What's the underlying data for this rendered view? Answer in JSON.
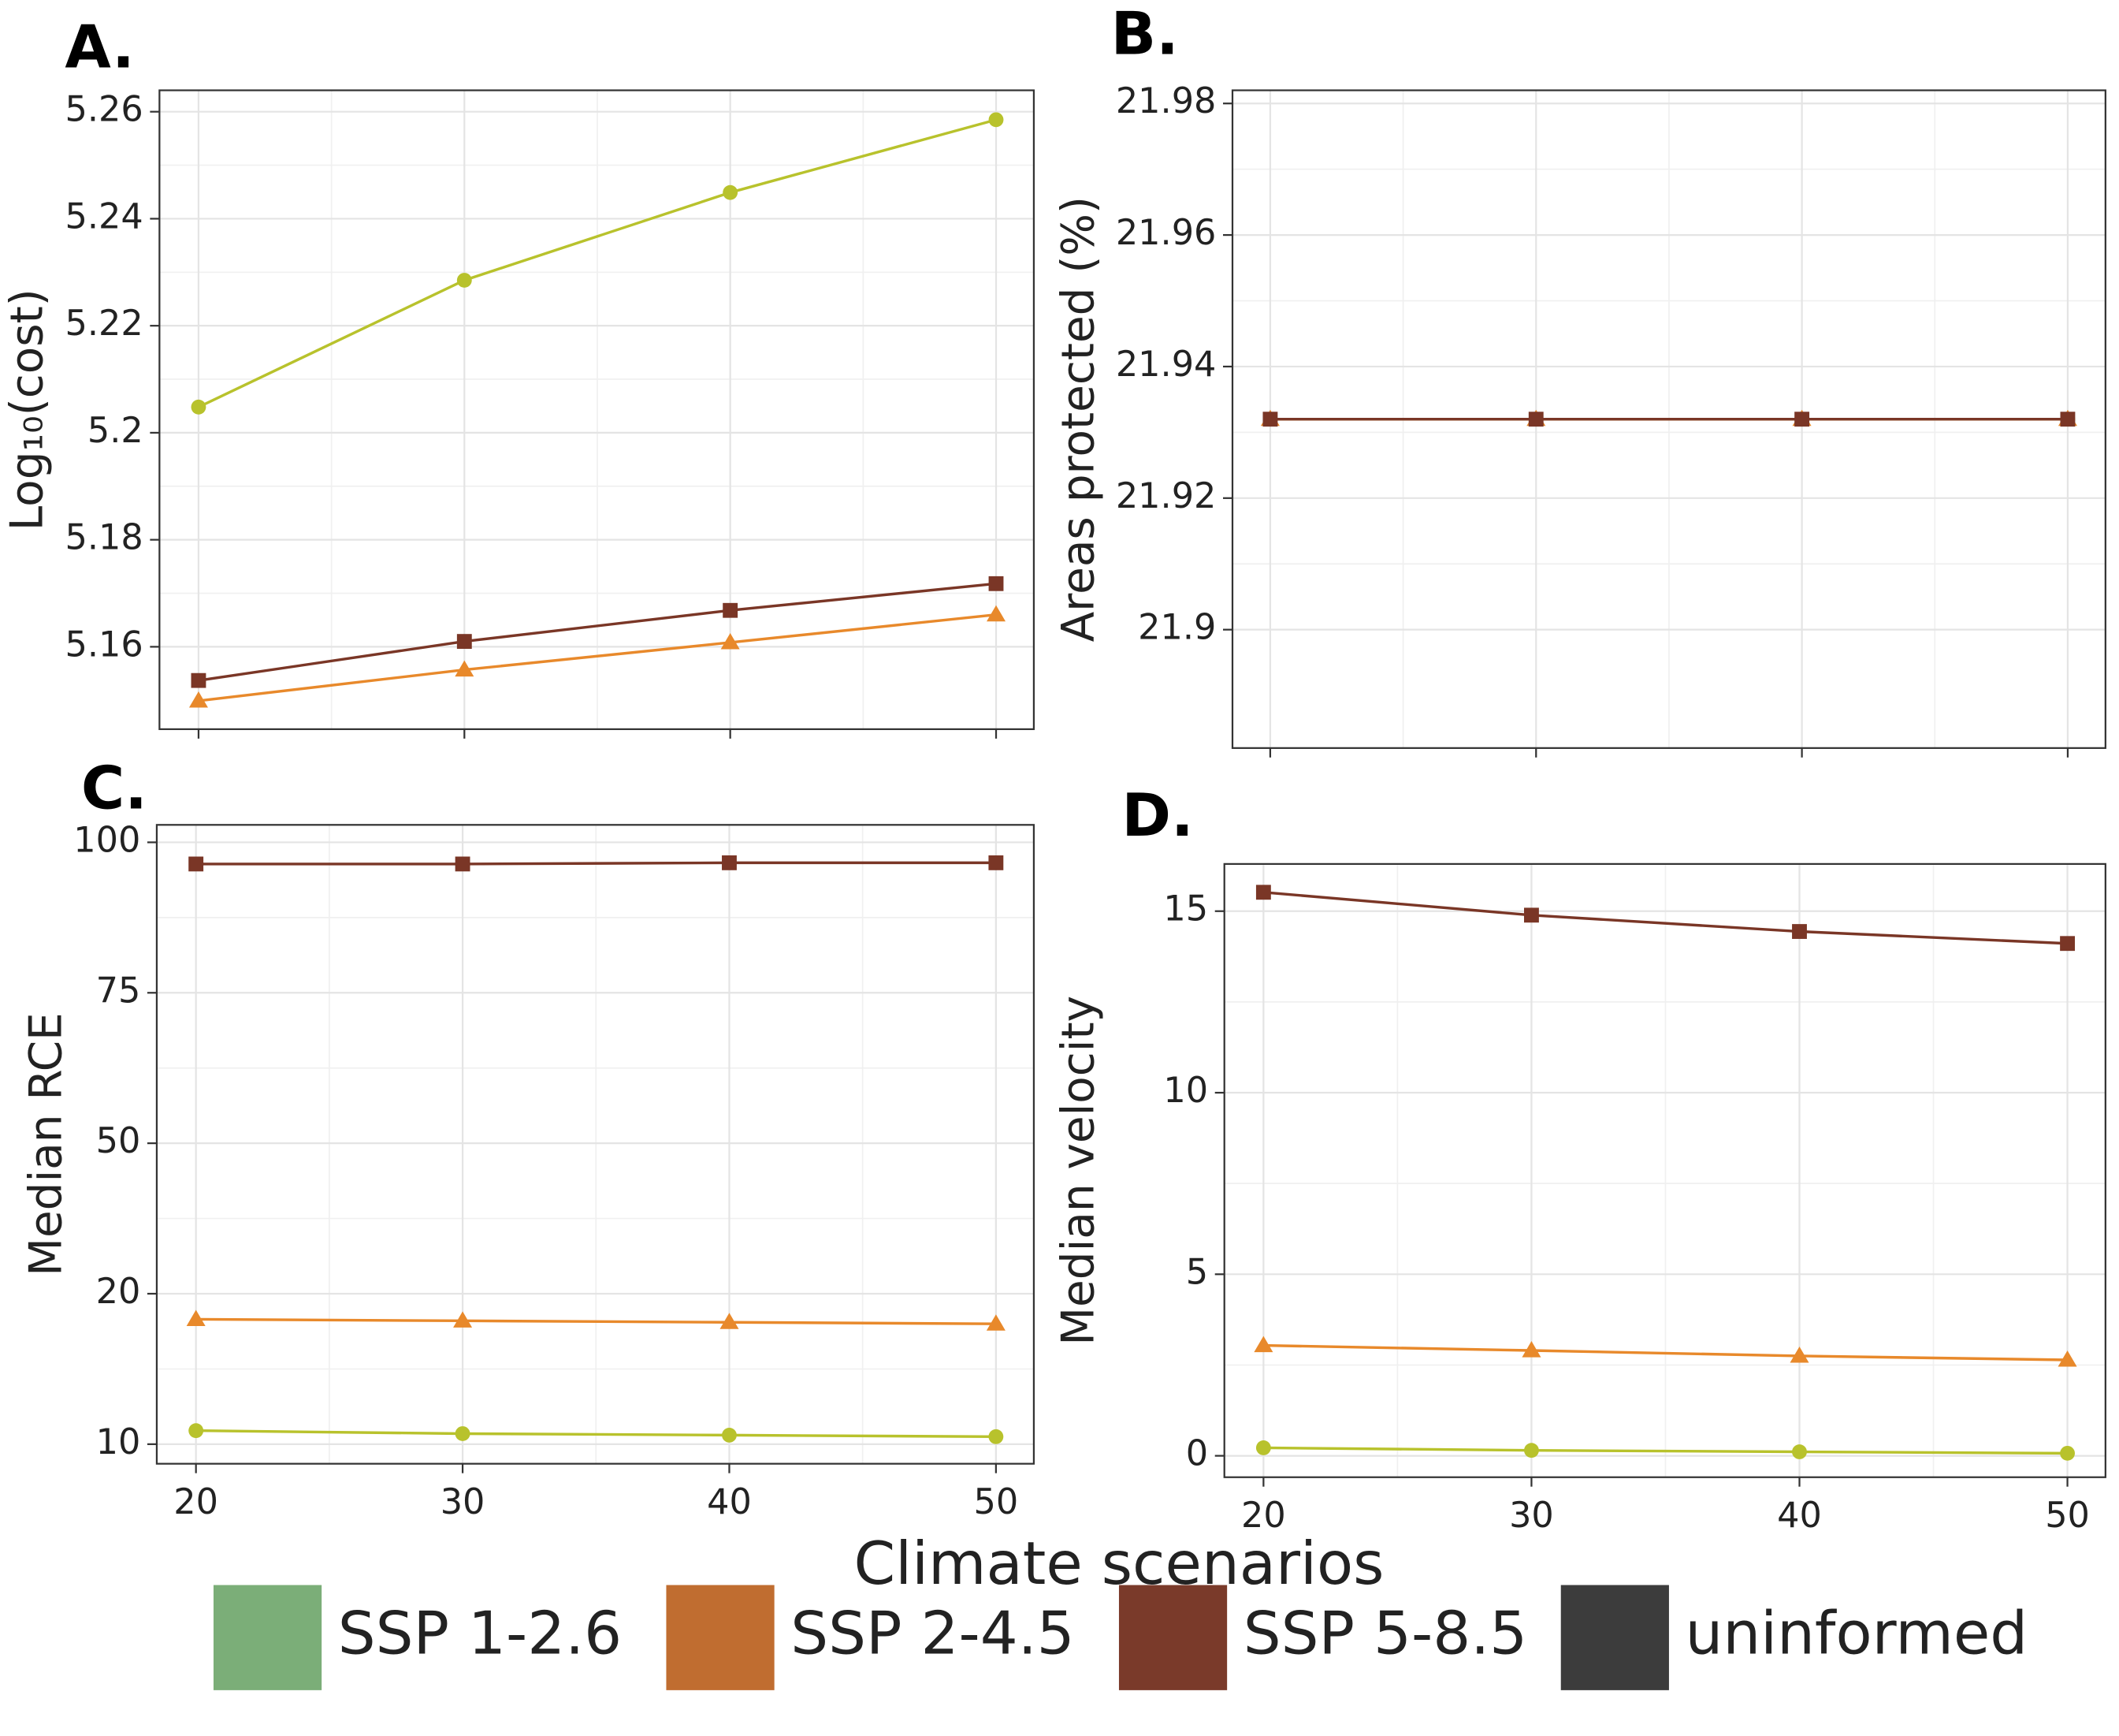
{
  "chart_data": [
    {
      "type": "line",
      "label": "A.",
      "ylabel": "Log₁₀(cost)",
      "x": [
        20,
        30,
        40,
        50
      ],
      "xlim": [
        18.53,
        51.42
      ],
      "xticks": [
        20,
        30,
        40,
        50
      ],
      "xtick_labels": false,
      "ylim": [
        5.1446,
        5.264
      ],
      "yticks": [
        5.16,
        5.18,
        5.2,
        5.22,
        5.24,
        5.26
      ],
      "grid": true,
      "series": [
        {
          "name": "SSP 1-2.6",
          "color": "#b8c22c",
          "marker": "circle",
          "values": [
            5.2048,
            5.2285,
            5.2449,
            5.2585
          ]
        },
        {
          "name": "SSP 2-4.5",
          "color": "#e8892b",
          "marker": "triangle",
          "values": [
            5.1499,
            5.1557,
            5.1608,
            5.166
          ]
        },
        {
          "name": "SSP 5-8.5",
          "color": "#7a3626",
          "marker": "square",
          "values": [
            5.1537,
            5.161,
            5.1668,
            5.1718
          ]
        }
      ]
    },
    {
      "type": "line",
      "label": "B.",
      "ylabel": "Areas protected (%)",
      "x": [
        20,
        30,
        40,
        50
      ],
      "xlim": [
        18.58,
        51.42
      ],
      "xticks": [
        20,
        30,
        40,
        50
      ],
      "xtick_labels": false,
      "ylim": [
        21.882,
        21.982
      ],
      "yticks": [
        21.9,
        21.92,
        21.94,
        21.96,
        21.98
      ],
      "grid": true,
      "series": [
        {
          "name": "SSP 1-2.6",
          "color": "#b8c22c",
          "marker": "circle",
          "values": [
            21.932,
            21.932,
            21.932,
            21.932
          ]
        },
        {
          "name": "SSP 2-4.5",
          "color": "#e8892b",
          "marker": "triangle",
          "values": [
            21.932,
            21.932,
            21.932,
            21.932
          ]
        },
        {
          "name": "SSP 5-8.5",
          "color": "#7a3626",
          "marker": "square",
          "values": [
            21.932,
            21.932,
            21.932,
            21.932
          ]
        }
      ]
    },
    {
      "type": "line",
      "label": "C.",
      "ylabel": "Median RCE",
      "x": [
        20,
        30,
        40,
        50
      ],
      "xlim": [
        18.53,
        51.42
      ],
      "xticks": [
        20,
        30,
        40,
        50
      ],
      "xtick_labels": true,
      "yscale": "piecewise",
      "ylim": [
        8.7,
        102.9
      ],
      "yticks": [
        10,
        20,
        50,
        75,
        100
      ],
      "grid": true,
      "series": [
        {
          "name": "SSP 1-2.6",
          "color": "#b8c22c",
          "marker": "circle",
          "values": [
            10.9,
            10.7,
            10.6,
            10.5
          ]
        },
        {
          "name": "SSP 2-4.5",
          "color": "#e8892b",
          "marker": "triangle",
          "values": [
            18.3,
            18.2,
            18.1,
            18.0
          ]
        },
        {
          "name": "SSP 5-8.5",
          "color": "#7a3626",
          "marker": "square",
          "values": [
            96.4,
            96.4,
            96.6,
            96.6
          ]
        }
      ]
    },
    {
      "type": "line",
      "label": "D.",
      "ylabel": "Median velocity",
      "x": [
        20,
        30,
        40,
        50
      ],
      "xlim": [
        18.54,
        51.42
      ],
      "xticks": [
        20,
        30,
        40,
        50
      ],
      "xtick_labels": true,
      "ylim": [
        -0.59,
        16.3
      ],
      "yticks": [
        0,
        5,
        10,
        15
      ],
      "grid": true,
      "series": [
        {
          "name": "SSP 1-2.6",
          "color": "#b8c22c",
          "marker": "circle",
          "values": [
            0.22,
            0.15,
            0.11,
            0.07
          ]
        },
        {
          "name": "SSP 2-4.5",
          "color": "#e8892b",
          "marker": "triangle",
          "values": [
            3.04,
            2.9,
            2.75,
            2.64
          ]
        },
        {
          "name": "SSP 5-8.5",
          "color": "#7a3626",
          "marker": "square",
          "values": [
            15.52,
            14.89,
            14.44,
            14.11
          ]
        }
      ]
    }
  ],
  "xlabel": "Climate scenarios",
  "legend": [
    {
      "name": "SSP 1-2.6",
      "color": "#7bae78"
    },
    {
      "name": "SSP 2-4.5",
      "color": "#c06d30"
    },
    {
      "name": "SSP 5-8.5",
      "color": "#7a3a2a"
    },
    {
      "name": "uninformed",
      "color": "#3c3c3c"
    }
  ]
}
